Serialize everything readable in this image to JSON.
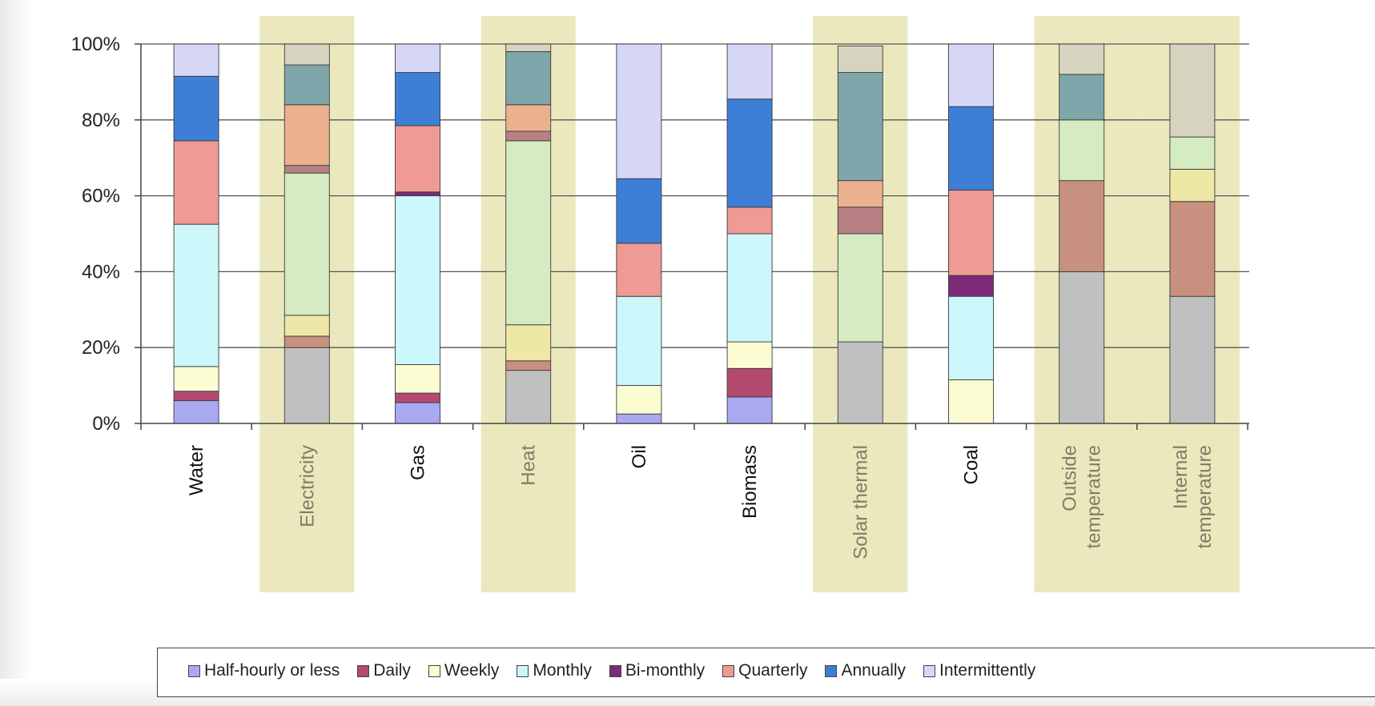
{
  "chart_data": {
    "type": "bar",
    "stacked": true,
    "ylim": [
      0,
      100
    ],
    "yticks": [
      "0%",
      "20%",
      "40%",
      "60%",
      "80%",
      "100%"
    ],
    "categories": [
      "Water",
      "Electricity",
      "Gas",
      "Heat",
      "Oil",
      "Biomass",
      "Solar thermal",
      "Coal",
      "Outside temperature",
      "Internal temperature"
    ],
    "highlighted": [
      false,
      true,
      false,
      true,
      false,
      false,
      true,
      false,
      true,
      true
    ],
    "grid": true,
    "legend_position": "bottom",
    "series": [
      {
        "name": "",
        "legend": false,
        "color": "#c0c0c0",
        "values": [
          0,
          20,
          0,
          14,
          0,
          0,
          21.5,
          0,
          40,
          33.5
        ]
      },
      {
        "name": "Half-hourly or less",
        "color": "#a9a9f2",
        "values": [
          6,
          0,
          5.5,
          0,
          2.5,
          7,
          0,
          0,
          0,
          0
        ]
      },
      {
        "name": "Daily",
        "color": "#b44a70",
        "values": [
          2.5,
          0,
          2.5,
          0,
          0,
          7.5,
          0,
          0,
          0,
          0
        ]
      },
      {
        "name": "",
        "legend": false,
        "color": "#c8907f",
        "values": [
          0,
          3,
          0,
          2.5,
          0,
          0,
          0,
          0,
          24,
          25
        ]
      },
      {
        "name": "Weekly",
        "color": "#fcfcd2",
        "values": [
          6.5,
          0,
          7.5,
          0,
          7.5,
          7,
          0,
          11.5,
          0,
          0
        ]
      },
      {
        "name": "",
        "legend": false,
        "color": "#ede8a6",
        "values": [
          0,
          5.5,
          0,
          9.5,
          0,
          0,
          0,
          0,
          0,
          8.5
        ]
      },
      {
        "name": "Monthly",
        "color": "#ccf7fb",
        "values": [
          37.5,
          0,
          44.5,
          0,
          23.5,
          28.5,
          0,
          22,
          0,
          0
        ]
      },
      {
        "name": "",
        "legend": false,
        "color": "#d5ebc1",
        "values": [
          0,
          37.5,
          0,
          48.5,
          0,
          0,
          28.5,
          0,
          16,
          8.5
        ]
      },
      {
        "name": "Bi-monthly",
        "color": "#7b2b78",
        "values": [
          0,
          0,
          1,
          0,
          0,
          0,
          0,
          5.5,
          0,
          0
        ]
      },
      {
        "name": "",
        "legend": false,
        "color": "#b78082",
        "values": [
          0,
          2,
          0,
          2.5,
          0,
          0,
          7,
          0,
          0,
          0
        ]
      },
      {
        "name": "Quarterly",
        "color": "#ef9a94",
        "values": [
          22,
          0,
          17.5,
          0,
          14,
          7,
          0,
          22.5,
          0,
          0
        ]
      },
      {
        "name": "",
        "legend": false,
        "color": "#ebb18f",
        "values": [
          0,
          16,
          0,
          7,
          0,
          0,
          7,
          0,
          0,
          0
        ]
      },
      {
        "name": "Annually",
        "color": "#3d7fd6",
        "values": [
          17,
          0,
          14,
          0,
          17,
          28.5,
          0,
          22,
          0,
          0
        ]
      },
      {
        "name": "",
        "legend": false,
        "color": "#7fa6aa",
        "values": [
          0,
          10.5,
          0,
          14,
          0,
          0,
          28.5,
          0,
          12,
          0
        ]
      },
      {
        "name": "Intermittently",
        "color": "#d6d6f7",
        "values": [
          8.5,
          0,
          7.5,
          0,
          35.5,
          14.5,
          0,
          16.5,
          0,
          0
        ]
      },
      {
        "name": "",
        "legend": false,
        "color": "#d6d4bf",
        "values": [
          0,
          5.5,
          0,
          2,
          0,
          0,
          7,
          0,
          8,
          24.5
        ]
      }
    ]
  }
}
